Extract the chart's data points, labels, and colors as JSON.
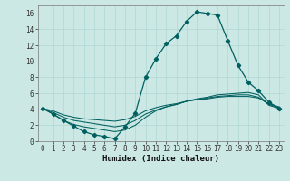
{
  "title": "",
  "xlabel": "Humidex (Indice chaleur)",
  "ylabel": "",
  "bg_color": "#cce8e4",
  "grid_color": "#b0d8d4",
  "line_color": "#006060",
  "xlim": [
    -0.5,
    23.5
  ],
  "ylim": [
    0,
    17
  ],
  "xticks": [
    0,
    1,
    2,
    3,
    4,
    5,
    6,
    7,
    8,
    9,
    10,
    11,
    12,
    13,
    14,
    15,
    16,
    17,
    18,
    19,
    20,
    21,
    22,
    23
  ],
  "yticks": [
    0,
    2,
    4,
    6,
    8,
    10,
    12,
    14,
    16
  ],
  "series": [
    [
      4.1,
      3.4,
      2.6,
      1.9,
      1.2,
      0.8,
      0.6,
      0.3,
      1.8,
      3.5,
      8.0,
      10.3,
      12.2,
      13.2,
      15.0,
      16.2,
      16.0,
      15.8,
      12.6,
      9.5,
      7.4,
      6.3,
      4.9,
      4.1
    ],
    [
      4.1,
      3.4,
      2.6,
      2.1,
      1.8,
      1.6,
      1.4,
      1.2,
      1.4,
      2.0,
      3.0,
      3.8,
      4.3,
      4.6,
      5.0,
      5.3,
      5.5,
      5.8,
      5.9,
      6.0,
      6.1,
      5.8,
      4.5,
      4.1
    ],
    [
      4.1,
      3.6,
      3.0,
      2.6,
      2.4,
      2.2,
      2.0,
      1.8,
      2.0,
      2.6,
      3.4,
      3.9,
      4.3,
      4.6,
      5.0,
      5.2,
      5.4,
      5.6,
      5.7,
      5.8,
      5.8,
      5.5,
      4.6,
      4.2
    ],
    [
      4.1,
      3.8,
      3.3,
      3.0,
      2.8,
      2.7,
      2.6,
      2.5,
      2.7,
      3.1,
      3.8,
      4.2,
      4.5,
      4.7,
      5.0,
      5.2,
      5.3,
      5.5,
      5.6,
      5.6,
      5.6,
      5.4,
      4.7,
      4.3
    ]
  ],
  "tick_fontsize": 5.5,
  "xlabel_fontsize": 6.5,
  "marker": "D",
  "markersize": 2.2,
  "linewidth_main": 0.9,
  "linewidth_sub": 0.75
}
